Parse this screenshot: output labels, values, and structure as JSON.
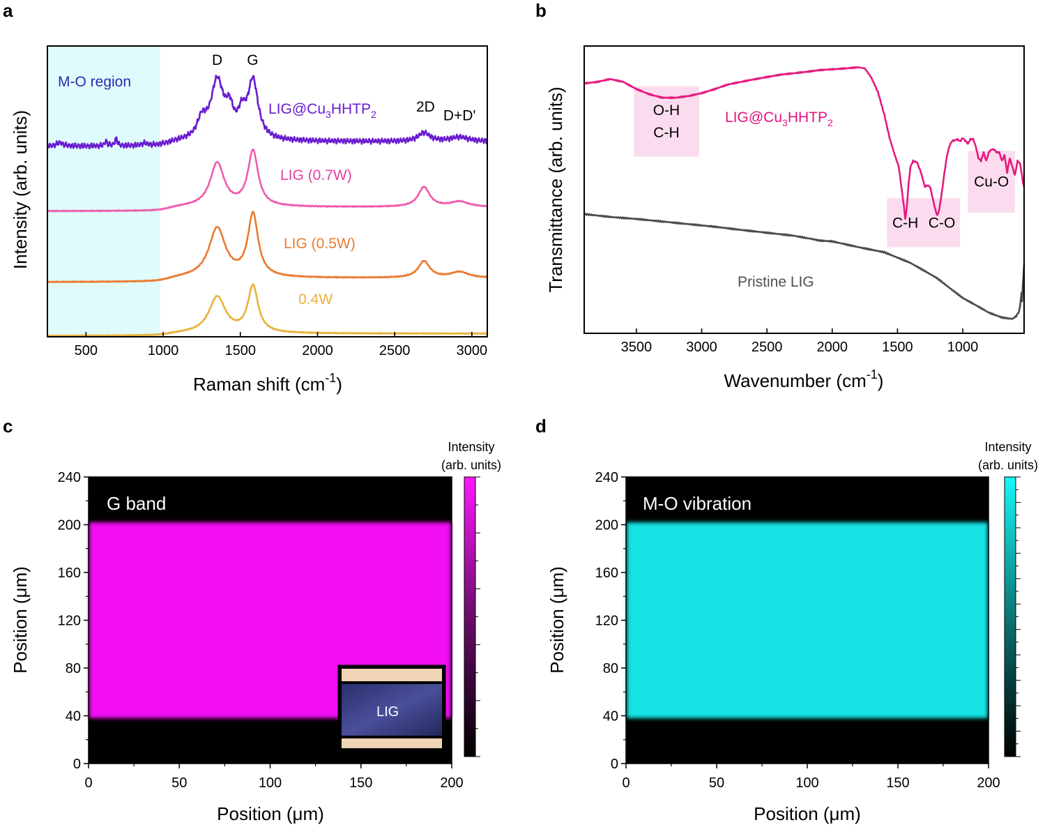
{
  "panels": {
    "a": {
      "letter": "a"
    },
    "b": {
      "letter": "b"
    },
    "c": {
      "letter": "c"
    },
    "d": {
      "letter": "d"
    }
  },
  "chart_data": [
    {
      "id": "a",
      "type": "line",
      "xlabel": "Raman shift (cm",
      "xlabel_sup": "-1",
      "xlabel_close": ")",
      "ylabel": "Intensity (arb. units)",
      "xlim": [
        250,
        3100
      ],
      "ylim": [
        0,
        1
      ],
      "xticks": [
        500,
        1000,
        1500,
        2000,
        2500,
        3000
      ],
      "region": {
        "label": "M-O region",
        "from": 250,
        "to": 980,
        "color": "#e0fbfc"
      },
      "peak_labels": [
        {
          "text": "D",
          "x": 1350,
          "y": 0.935
        },
        {
          "text": "G",
          "x": 1580,
          "y": 0.935
        },
        {
          "text": "2D",
          "x": 2700,
          "y": 0.775
        },
        {
          "text": "D+D'",
          "x": 2920,
          "y": 0.745
        }
      ],
      "series": [
        {
          "name": "LIG@Cu3HHTP2",
          "label_main": "LIG@Cu",
          "label_sub1": "3",
          "label_mid": "HHTP",
          "label_sub2": "2",
          "label_color": "#6a1bd0",
          "color": "#6a1bd0",
          "offset": 0.655,
          "gap": 0.016,
          "d": 0.2,
          "dw": 50,
          "g": 0.2,
          "gw": 40,
          "p2d": 0.03,
          "pdd": 0.015,
          "mo": true,
          "noise": 0.01,
          "extra": [
            {
              "c": 1250,
              "h": 0.06,
              "w": 35
            },
            {
              "c": 1430,
              "h": 0.08,
              "w": 30
            },
            {
              "c": 1510,
              "h": 0.07,
              "w": 30
            }
          ]
        },
        {
          "name": "LIG (0.7W)",
          "label_main": "LIG (0.7W)",
          "label_color": "#e33fa0",
          "color": "#ee5bab",
          "offset": 0.432,
          "gap": 0.014,
          "d": 0.15,
          "dw": 55,
          "g": 0.19,
          "gw": 40,
          "p2d": 0.068,
          "pdd": 0.018,
          "mo": false,
          "noise": 0.002,
          "extra": []
        },
        {
          "name": "LIG (0.5W)",
          "label_main": "LIG (0.5W)",
          "label_color": "#ea7a30",
          "color": "#ea7a30",
          "offset": 0.188,
          "gap": 0.014,
          "d": 0.17,
          "dw": 65,
          "g": 0.215,
          "gw": 40,
          "p2d": 0.057,
          "pdd": 0.02,
          "mo": false,
          "noise": 0.002,
          "extra": []
        },
        {
          "name": "0.4W",
          "label_main": "0.4W",
          "label_color": "#e9b13b",
          "color": "#e9b13b",
          "offset": 0.003,
          "gap": 0.008,
          "d": 0.125,
          "dw": 65,
          "g": 0.16,
          "gw": 40,
          "p2d": 0.0,
          "pdd": 0.0,
          "mo": false,
          "noise": 0.002,
          "extra": []
        }
      ]
    },
    {
      "id": "b",
      "type": "line",
      "xlabel": "Wavenumber (cm",
      "xlabel_sup": "-1",
      "xlabel_close": ")",
      "ylabel": "Transmittance (arb. units)",
      "xlim": [
        3900,
        530
      ],
      "ylim": [
        0,
        1
      ],
      "xticks": [
        3500,
        3000,
        2500,
        2000,
        1500,
        1000
      ],
      "series": [
        {
          "name": "LIG@Cu3HHTP2",
          "label_main": "LIG@Cu",
          "label_sub1": "3",
          "label_mid": "HHTP",
          "label_sub2": "2",
          "label_color": "#e3137f",
          "color": "#e6197d",
          "points": [
            [
              3900,
              0.87
            ],
            [
              3800,
              0.875
            ],
            [
              3700,
              0.885
            ],
            [
              3600,
              0.875
            ],
            [
              3500,
              0.85
            ],
            [
              3400,
              0.832
            ],
            [
              3300,
              0.82
            ],
            [
              3200,
              0.82
            ],
            [
              3100,
              0.826
            ],
            [
              3000,
              0.836
            ],
            [
              2900,
              0.85
            ],
            [
              2800,
              0.866
            ],
            [
              2700,
              0.875
            ],
            [
              2600,
              0.884
            ],
            [
              2500,
              0.892
            ],
            [
              2400,
              0.9
            ],
            [
              2300,
              0.905
            ],
            [
              2200,
              0.91
            ],
            [
              2100,
              0.916
            ],
            [
              2000,
              0.919
            ],
            [
              1900,
              0.922
            ],
            [
              1800,
              0.926
            ],
            [
              1750,
              0.922
            ],
            [
              1700,
              0.89
            ],
            [
              1650,
              0.84
            ],
            [
              1600,
              0.76
            ],
            [
              1560,
              0.68
            ],
            [
              1520,
              0.62
            ],
            [
              1490,
              0.58
            ],
            [
              1470,
              0.51
            ],
            [
              1450,
              0.44
            ],
            [
              1440,
              0.4
            ],
            [
              1430,
              0.43
            ],
            [
              1415,
              0.52
            ],
            [
              1400,
              0.58
            ],
            [
              1380,
              0.6
            ],
            [
              1350,
              0.595
            ],
            [
              1320,
              0.56
            ],
            [
              1290,
              0.51
            ],
            [
              1270,
              0.515
            ],
            [
              1250,
              0.51
            ],
            [
              1230,
              0.47
            ],
            [
              1210,
              0.43
            ],
            [
              1195,
              0.41
            ],
            [
              1180,
              0.43
            ],
            [
              1160,
              0.49
            ],
            [
              1140,
              0.56
            ],
            [
              1120,
              0.62
            ],
            [
              1100,
              0.655
            ],
            [
              1080,
              0.67
            ],
            [
              1060,
              0.672
            ],
            [
              1040,
              0.675
            ],
            [
              1020,
              0.668
            ],
            [
              1000,
              0.68
            ],
            [
              980,
              0.67
            ],
            [
              960,
              0.66
            ],
            [
              940,
              0.676
            ],
            [
              920,
              0.676
            ],
            [
              900,
              0.65
            ],
            [
              880,
              0.61
            ],
            [
              860,
              0.6
            ],
            [
              840,
              0.63
            ],
            [
              820,
              0.6
            ],
            [
              800,
              0.63
            ],
            [
              780,
              0.64
            ],
            [
              760,
              0.64
            ],
            [
              740,
              0.63
            ],
            [
              720,
              0.63
            ],
            [
              700,
              0.6
            ],
            [
              680,
              0.62
            ],
            [
              660,
              0.56
            ],
            [
              640,
              0.61
            ],
            [
              620,
              0.58
            ],
            [
              600,
              0.55
            ],
            [
              580,
              0.6
            ],
            [
              560,
              0.59
            ],
            [
              540,
              0.53
            ],
            [
              530,
              0.51
            ]
          ]
        },
        {
          "name": "Pristine LIG",
          "label_main": "Pristine LIG",
          "label_color": "#505050",
          "color": "#4b4b4b",
          "points": [
            [
              3900,
              0.415
            ],
            [
              3700,
              0.405
            ],
            [
              3500,
              0.398
            ],
            [
              3300,
              0.389
            ],
            [
              3100,
              0.38
            ],
            [
              2900,
              0.371
            ],
            [
              2700,
              0.36
            ],
            [
              2500,
              0.35
            ],
            [
              2300,
              0.34
            ],
            [
              2150,
              0.328
            ],
            [
              2100,
              0.323
            ],
            [
              2000,
              0.32
            ],
            [
              1800,
              0.3
            ],
            [
              1600,
              0.282
            ],
            [
              1400,
              0.245
            ],
            [
              1200,
              0.193
            ],
            [
              1000,
              0.123
            ],
            [
              900,
              0.098
            ],
            [
              800,
              0.072
            ],
            [
              700,
              0.055
            ],
            [
              620,
              0.05
            ],
            [
              590,
              0.06
            ],
            [
              570,
              0.075
            ],
            [
              560,
              0.098
            ],
            [
              550,
              0.14
            ],
            [
              545,
              0.11
            ],
            [
              540,
              0.17
            ],
            [
              535,
              0.2
            ],
            [
              530,
              0.24
            ]
          ]
        }
      ],
      "bands": [
        {
          "lines": [
            "O-H",
            "C-H"
          ],
          "x0": 3520,
          "x1": 3020,
          "y0": 0.615,
          "y1": 0.86
        },
        {
          "lines": [
            "C-H"
          ],
          "x0": 1580,
          "x1": 1300,
          "y0": 0.3,
          "y1": 0.47
        },
        {
          "lines": [
            "C-O"
          ],
          "x0": 1300,
          "x1": 1020,
          "y0": 0.3,
          "y1": 0.47
        },
        {
          "lines": [
            "Cu-O"
          ],
          "x0": 960,
          "x1": 600,
          "y0": 0.42,
          "y1": 0.635
        }
      ]
    },
    {
      "id": "c",
      "type": "heatmap",
      "title": "G band",
      "xlabel": "Position (μm)",
      "ylabel": "Position (μm)",
      "xlim": [
        0,
        200
      ],
      "ylim": [
        0,
        240
      ],
      "xticks": [
        0,
        50,
        100,
        150,
        200
      ],
      "yticks": [
        0,
        40,
        80,
        120,
        160,
        200,
        240
      ],
      "band_range": [
        38,
        202
      ],
      "band_color": "#f20ff2",
      "colorbar": {
        "title_line1": "Intensity",
        "title_line2": "(arb. units)",
        "top_color": "#ff17ff",
        "mid_color": "#6a0b6a",
        "bottom_color": "#000000"
      },
      "inset": {
        "label": "LIG"
      }
    },
    {
      "id": "d",
      "type": "heatmap",
      "title": "M-O vibration",
      "xlabel": "Position (μm)",
      "ylabel": "Position (μm)",
      "xlim": [
        0,
        200
      ],
      "ylim": [
        0,
        240
      ],
      "xticks": [
        0,
        50,
        100,
        150,
        200
      ],
      "yticks": [
        0,
        40,
        80,
        120,
        160,
        200,
        240
      ],
      "band_range": [
        38,
        202
      ],
      "band_color": "#13e3e3",
      "colorbar": {
        "title_line1": "Intensity",
        "title_line2": "(arb. units)",
        "top_color": "#16f8f8",
        "mid_color": "#0b7575",
        "bottom_color": "#000000"
      }
    }
  ]
}
